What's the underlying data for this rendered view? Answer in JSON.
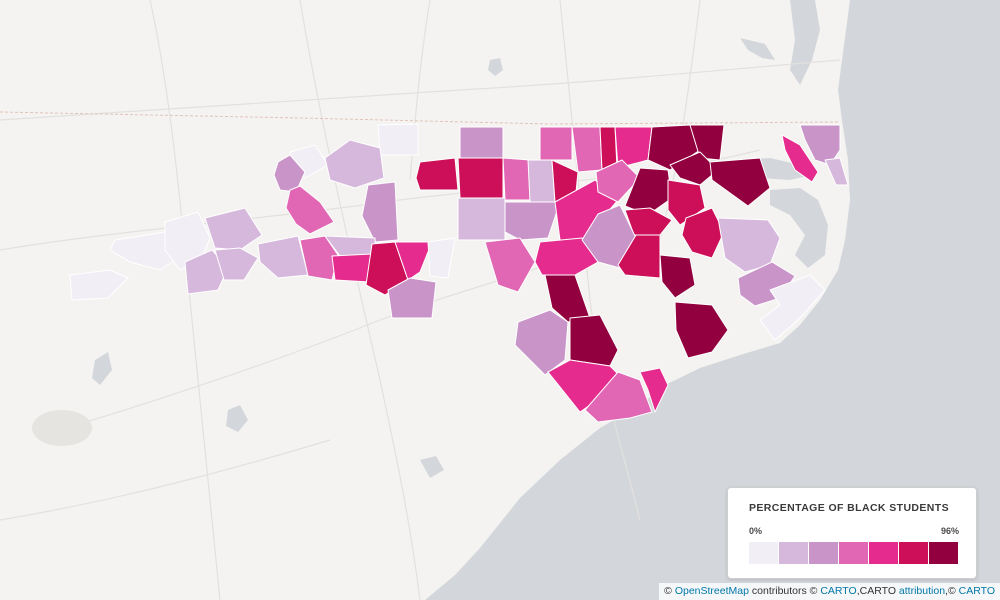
{
  "legend": {
    "title": "PERCENTAGE OF BLACK STUDENTS",
    "min_label": "0%",
    "max_label": "96%",
    "colors": [
      "#f2eef5",
      "#d7b8dd",
      "#c995c9",
      "#e167b5",
      "#e52b8d",
      "#cc0f58",
      "#92003f"
    ]
  },
  "attribution": {
    "prefix": "©",
    "osm_link": "OpenStreetMap",
    "contributors": "contributors ©",
    "carto_link": "CARTO",
    "carto_mid": ",CARTO",
    "attribution_link": "attribution",
    "carto_tail_prefix": ",©",
    "carto_link_2": "CARTO"
  },
  "colors": {
    "land": "#f4f3f1",
    "water": "#d3d7db",
    "roads": "#e3e1de",
    "state_border": "#e0c3b8"
  }
}
